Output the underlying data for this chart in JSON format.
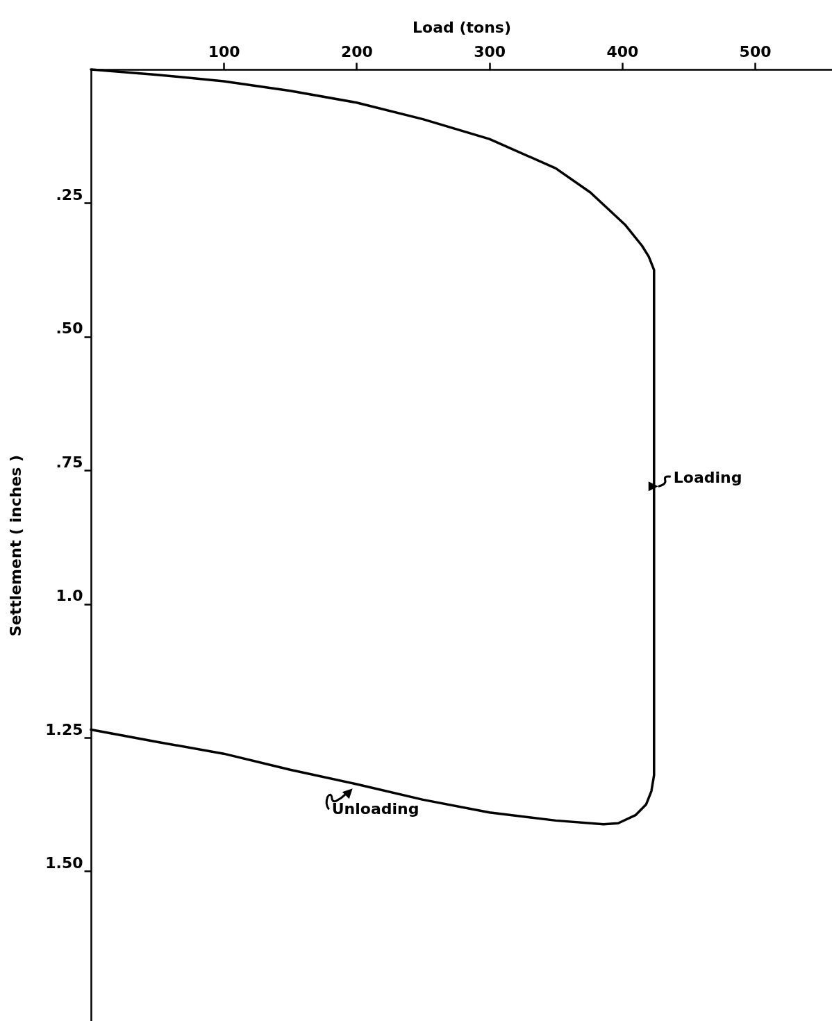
{
  "chart_data": {
    "type": "line",
    "xlabel": "Load (tons)",
    "ylabel": "Settlement ( inches )",
    "xlim": [
      0,
      558
    ],
    "ylim": [
      1.78,
      0
    ],
    "xticks": [
      100,
      200,
      300,
      400,
      500
    ],
    "yticks": [
      {
        "value": 0.25,
        "label": ".25"
      },
      {
        "value": 0.5,
        "label": ".50"
      },
      {
        "value": 0.75,
        "label": ".75"
      },
      {
        "value": 1,
        "label": "1.0"
      },
      1.25,
      {
        "value": 1.5,
        "label": "1.50"
      }
    ],
    "grid": false,
    "legend": false,
    "marker": "none",
    "line_style": "solid",
    "series": [
      {
        "color": "#000000",
        "x": [
          0,
          50,
          100,
          150,
          200,
          250,
          300,
          350,
          376,
          402,
          415,
          420,
          424,
          424,
          422,
          418,
          410,
          397,
          386,
          350,
          300,
          250,
          200,
          150,
          100,
          50,
          0
        ],
        "values": [
          0,
          0.01,
          0.022,
          0.04,
          0.062,
          0.093,
          0.13,
          0.185,
          0.23,
          0.29,
          0.33,
          0.35,
          0.375,
          1.32,
          1.35,
          1.375,
          1.395,
          1.41,
          1.412,
          1.405,
          1.39,
          1.366,
          1.337,
          1.31,
          1.28,
          1.258,
          1.235
        ]
      }
    ],
    "annotations": [
      {
        "text": "Loading",
        "x": 424,
        "y": 0.78
      },
      {
        "text": "Unloading",
        "x": 197,
        "y": 1.34
      }
    ]
  }
}
